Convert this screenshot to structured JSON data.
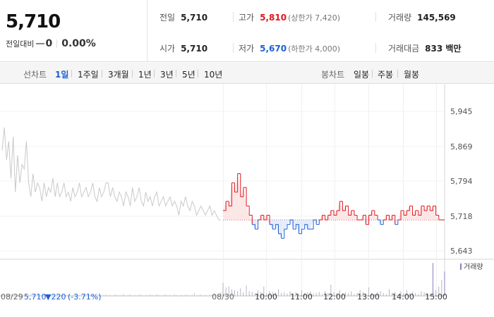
{
  "summary": {
    "price": "5,710",
    "change_label": "전일대비",
    "change_amount": "0",
    "change_percent": "0.00%"
  },
  "details": {
    "prev_close": {
      "label": "전일",
      "value": "5,710"
    },
    "open": {
      "label": "시가",
      "value": "5,710"
    },
    "high": {
      "label": "고가",
      "value": "5,810",
      "note": "(상한가 7,420)"
    },
    "low": {
      "label": "저가",
      "value": "5,670",
      "note": "(하한가 4,000)"
    },
    "volume": {
      "label": "거래량",
      "value": "145,569"
    },
    "trade_value": {
      "label": "거래대금",
      "value": "833 백만"
    }
  },
  "period_bar": {
    "line_label": "선차트",
    "line_options": [
      "1일",
      "1주일",
      "3개월",
      "1년",
      "3년",
      "5년",
      "10년"
    ],
    "active": "1일",
    "candle_label": "봉차트",
    "candle_options": [
      "일봉",
      "주봉",
      "월봉"
    ]
  },
  "colors": {
    "up": "#e0151d",
    "down": "#1e5fd3",
    "prev_day": "#c9c9c9",
    "volume": "#b5b5c8",
    "volume_highlight": "#8e7ec4"
  },
  "chart_data": {
    "type": "line",
    "y_ticks": [
      "5,945",
      "5,869",
      "5,794",
      "5,718",
      "5,643"
    ],
    "ylim": [
      5643,
      5945
    ],
    "baseline": 5710,
    "x_ticks": [
      "08/29",
      "08/30",
      "10:00",
      "11:00",
      "12:00",
      "13:00",
      "14:00",
      "15:00"
    ],
    "prev_day_info": {
      "date": "08/29",
      "close": "5,710",
      "change": "▼220",
      "change_pct": "(-3.71%)"
    },
    "volume_legend": "거래량",
    "series": [
      {
        "name": "08/29",
        "values": [
          5860,
          5910,
          5840,
          5880,
          5800,
          5890,
          5770,
          5850,
          5790,
          5830,
          5820,
          5880,
          5790,
          5760,
          5810,
          5770,
          5790,
          5780,
          5750,
          5790,
          5760,
          5780,
          5770,
          5800,
          5760,
          5790,
          5760,
          5770,
          5790,
          5760,
          5770,
          5750,
          5780,
          5760,
          5770,
          5790,
          5760,
          5770,
          5780,
          5760,
          5770,
          5790,
          5760,
          5750,
          5780,
          5760,
          5770,
          5790,
          5790,
          5760,
          5780,
          5760,
          5750,
          5770,
          5760,
          5740,
          5770,
          5760,
          5740,
          5780,
          5750,
          5760,
          5780,
          5750,
          5740,
          5770,
          5750,
          5760,
          5740,
          5760,
          5770,
          5740,
          5750,
          5760,
          5740,
          5750,
          5760,
          5740,
          5750,
          5740,
          5720,
          5750,
          5740,
          5760,
          5740,
          5730,
          5750,
          5740,
          5720,
          5730,
          5740,
          5730,
          5720,
          5730,
          5740,
          5720,
          5730,
          5720,
          5710,
          5710
        ]
      },
      {
        "name": "08/30",
        "x": [
          "09:00",
          "09:05",
          "09:10",
          "09:15",
          "09:20",
          "09:25",
          "09:30",
          "09:35",
          "09:40",
          "09:45",
          "09:50",
          "09:55",
          "10:00",
          "10:05",
          "10:10",
          "10:15",
          "10:20",
          "10:25",
          "10:30",
          "10:35",
          "10:40",
          "10:45",
          "10:50",
          "10:55",
          "11:00",
          "11:05",
          "11:10",
          "11:15",
          "11:20",
          "11:25",
          "11:30",
          "11:35",
          "11:40",
          "11:45",
          "11:50",
          "11:55",
          "12:00",
          "12:05",
          "12:10",
          "12:15",
          "12:20",
          "12:25",
          "12:30",
          "12:35",
          "12:40",
          "12:45",
          "12:50",
          "12:55",
          "13:00",
          "13:05",
          "13:10",
          "13:15",
          "13:20",
          "13:25",
          "13:30",
          "13:35",
          "13:40",
          "13:45",
          "13:50",
          "13:55",
          "14:00",
          "14:05",
          "14:10",
          "14:15",
          "14:20",
          "14:25",
          "14:30",
          "14:35",
          "14:40",
          "14:45",
          "14:50",
          "14:55",
          "15:00",
          "15:05",
          "15:10",
          "15:15",
          "15:20"
        ],
        "values": [
          5730,
          5750,
          5740,
          5790,
          5770,
          5810,
          5760,
          5780,
          5740,
          5720,
          5700,
          5690,
          5710,
          5720,
          5710,
          5720,
          5700,
          5690,
          5700,
          5680,
          5670,
          5690,
          5700,
          5710,
          5690,
          5700,
          5680,
          5690,
          5700,
          5690,
          5690,
          5710,
          5700,
          5710,
          5720,
          5710,
          5720,
          5730,
          5720,
          5730,
          5750,
          5730,
          5740,
          5720,
          5730,
          5720,
          5710,
          5710,
          5720,
          5700,
          5720,
          5730,
          5720,
          5710,
          5700,
          5710,
          5720,
          5710,
          5720,
          5700,
          5710,
          5730,
          5720,
          5730,
          5740,
          5720,
          5730,
          5720,
          5740,
          5730,
          5740,
          5730,
          5740,
          5720,
          5710,
          5710,
          5710
        ]
      }
    ],
    "volume": {
      "prev_day": [
        3,
        2,
        5,
        2,
        4,
        1,
        3,
        2,
        6,
        2,
        1,
        3,
        2,
        4,
        1,
        2,
        3,
        1,
        2,
        5,
        2,
        1,
        3,
        2,
        1,
        4,
        2,
        3,
        1,
        2,
        3,
        1,
        2,
        4,
        1,
        2,
        3,
        1,
        2,
        1,
        3,
        2,
        1,
        2,
        5,
        1,
        2,
        3,
        1,
        2,
        1,
        3,
        2,
        1,
        2,
        4,
        1,
        2,
        3,
        1,
        2,
        1,
        3,
        2,
        1,
        2,
        1,
        3,
        2,
        1,
        4,
        2,
        1,
        2,
        3,
        1,
        2,
        1,
        3,
        2,
        1,
        2,
        1,
        3,
        2,
        1,
        2,
        6,
        1,
        2,
        3,
        1,
        2,
        1,
        3,
        2,
        4,
        1,
        2,
        8
      ],
      "today": [
        28,
        18,
        20,
        14,
        12,
        10,
        16,
        8,
        22,
        10,
        8,
        6,
        12,
        8,
        20,
        6,
        10,
        8,
        7,
        14,
        6,
        8,
        5,
        10,
        6,
        8,
        4,
        12,
        6,
        8,
        10,
        5,
        6,
        8,
        4,
        10,
        6,
        24,
        8,
        6,
        12,
        5,
        8,
        6,
        10,
        4,
        6,
        12,
        8,
        5,
        18,
        6,
        4,
        8,
        10,
        6,
        4,
        14,
        6,
        8,
        4,
        10,
        6,
        12,
        5,
        8,
        6,
        4,
        10,
        8,
        6,
        4,
        70,
        12,
        20,
        34,
        52
      ]
    }
  }
}
